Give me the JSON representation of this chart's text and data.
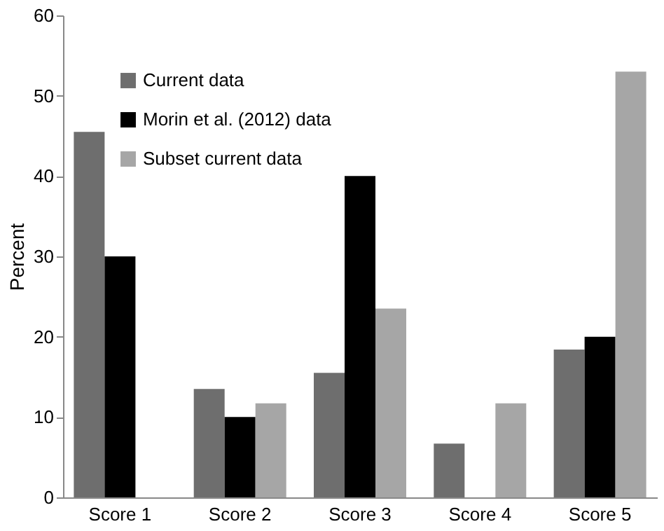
{
  "chart_data": {
    "type": "bar",
    "ylabel": "Percent",
    "categories": [
      "Score 1",
      "Score 2",
      "Score 3",
      "Score 4",
      "Score 5"
    ],
    "series": [
      {
        "name": "Current data",
        "color": "#6e6e6e",
        "values": [
          45.5,
          13.5,
          15.5,
          6.7,
          18.4
        ]
      },
      {
        "name": "Morin et al. (2012) data",
        "color": "#000000",
        "values": [
          30,
          10,
          40,
          0,
          20
        ]
      },
      {
        "name": "Subset current data",
        "color": "#a6a6a6",
        "values": [
          0,
          11.7,
          23.5,
          11.7,
          53
        ]
      }
    ],
    "ylim": [
      0,
      60
    ],
    "yticks": [
      0,
      10,
      20,
      30,
      40,
      50,
      60
    ],
    "grid": false,
    "legend": "top left"
  }
}
